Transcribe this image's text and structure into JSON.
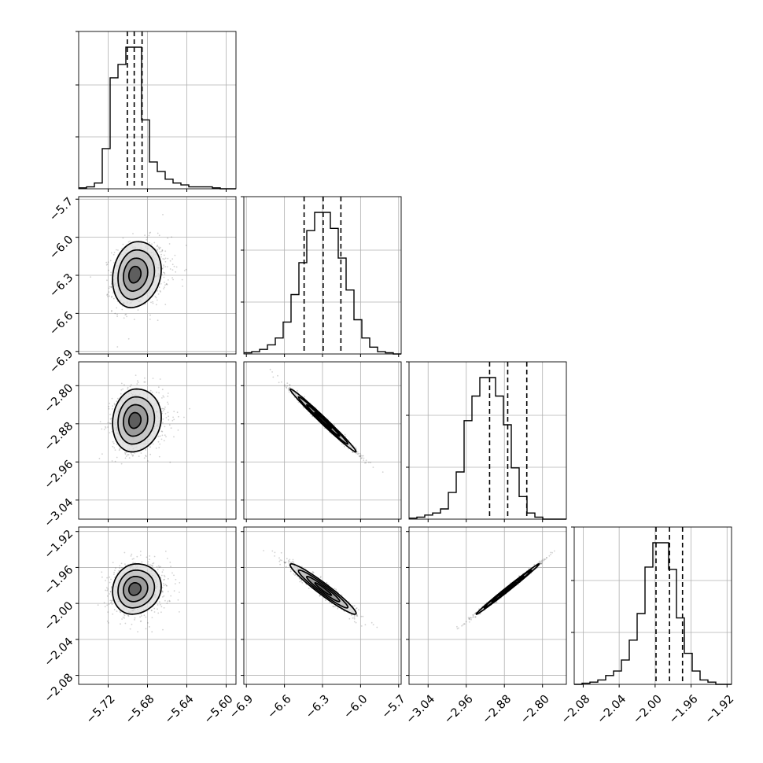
{
  "chart_data": {
    "type": "corner",
    "title": "",
    "parameters": [
      {
        "range": [
          -5.75,
          -5.59
        ],
        "ticks": [
          -5.72,
          -5.68,
          -5.64,
          -5.6
        ],
        "tick_labels": [
          "−5.72",
          "−5.68",
          "−5.64",
          "−5.60"
        ],
        "mean": -5.6935,
        "std": 0.011,
        "quantiles": [
          -5.7005,
          -5.6935,
          -5.6855
        ],
        "hist_edges_start": -5.75,
        "hist_bin_width": 0.008,
        "hist_counts": [
          0.5,
          1,
          3,
          21,
          58,
          65,
          74,
          74,
          36,
          14,
          9,
          5,
          3,
          2,
          1,
          1,
          1,
          0.5,
          0,
          0
        ]
      },
      {
        "range": [
          -6.92,
          -5.68
        ],
        "ticks": [
          -6.9,
          -6.6,
          -6.3,
          -6.0,
          -5.7
        ],
        "tick_labels": [
          "−6.9",
          "−6.6",
          "−6.3",
          "−6.0",
          "−5.7"
        ],
        "mean": -6.295,
        "std": 0.13,
        "quantiles": [
          -6.445,
          -6.295,
          -6.155
        ],
        "hist_edges_start": -6.92,
        "hist_bin_width": 0.062,
        "hist_counts": [
          0.5,
          1,
          2,
          4,
          7,
          14,
          26,
          40,
          54,
          62,
          62,
          55,
          42,
          28,
          15,
          7,
          3,
          1,
          0.5,
          0
        ]
      },
      {
        "range": [
          -3.08,
          -2.75
        ],
        "ticks": [
          -3.04,
          -2.96,
          -2.88,
          -2.8
        ],
        "tick_labels": [
          "−3.04",
          "−2.96",
          "−2.88",
          "−2.80"
        ],
        "mean": -2.873,
        "std": 0.033,
        "quantiles": [
          -2.911,
          -2.873,
          -2.833
        ],
        "hist_edges_start": -3.08,
        "hist_bin_width": 0.0165,
        "hist_counts": [
          0.5,
          1,
          2,
          3,
          5,
          13,
          23,
          48,
          60,
          69,
          69,
          60,
          46,
          25,
          11,
          3,
          1,
          0,
          0,
          0
        ]
      },
      {
        "range": [
          -2.09,
          -1.915
        ],
        "ticks": [
          -2.08,
          -2.04,
          -2.0,
          -1.96,
          -1.92
        ],
        "tick_labels": [
          "−2.08",
          "−2.04",
          "−2.00",
          "−1.96",
          "−1.92"
        ],
        "mean": -1.984,
        "std": 0.014,
        "quantiles": [
          -1.999,
          -1.984,
          -1.9695
        ],
        "hist_edges_start": -2.09,
        "hist_bin_width": 0.00875,
        "hist_counts": [
          0,
          0.5,
          1,
          2,
          4,
          6,
          11,
          20,
          32,
          53,
          64,
          64,
          52,
          30,
          14,
          6,
          2,
          1,
          0,
          0
        ]
      }
    ],
    "correlations": [
      [
        0,
        1,
        0.15
      ],
      [
        0,
        2,
        0.1
      ],
      [
        1,
        2,
        -0.99
      ],
      [
        0,
        3,
        0.1
      ],
      [
        1,
        3,
        -0.96
      ],
      [
        2,
        3,
        0.995
      ]
    ],
    "contour_levels_sigma": [
      0.5,
      1.0,
      1.5,
      2.0
    ],
    "grid": true
  }
}
